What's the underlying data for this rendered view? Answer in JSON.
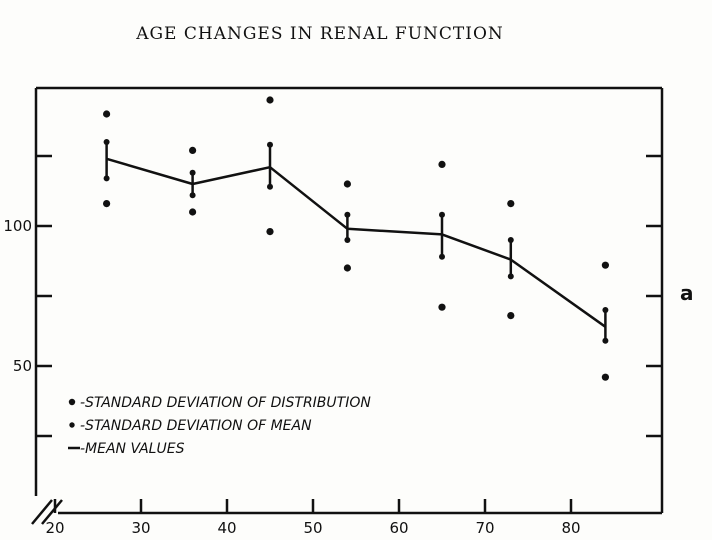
{
  "title": "AGE CHANGES IN RENAL FUNCTION",
  "side_label": "a",
  "legend": [
    {
      "marker": "dot-large",
      "text": "-STANDARD DEVIATION OF DISTRIBUTION"
    },
    {
      "marker": "dot-small",
      "text": "-STANDARD DEVIATION OF MEAN"
    },
    {
      "marker": "line",
      "text": "-MEAN VALUES"
    }
  ],
  "chart_data": {
    "type": "line",
    "title": "AGE CHANGES IN RENAL FUNCTION",
    "xlabel": "",
    "ylabel": "",
    "xlim": [
      15,
      88
    ],
    "ylim": [
      0,
      145
    ],
    "x_break": true,
    "x_ticks": [
      20,
      30,
      40,
      50,
      60,
      70,
      80
    ],
    "y_ticks": [
      50,
      100
    ],
    "grid": false,
    "legend_position": "bottom-left",
    "series": [
      {
        "name": "MEAN VALUES",
        "x": [
          26,
          36,
          45,
          54,
          65,
          73,
          84
        ],
        "y": [
          124,
          115,
          121,
          99,
          97,
          88,
          64
        ]
      },
      {
        "name": "STANDARD DEVIATION OF MEAN (upper)",
        "x": [
          26,
          36,
          45,
          54,
          65,
          73,
          84
        ],
        "y": [
          130,
          119,
          129,
          104,
          104,
          95,
          70
        ]
      },
      {
        "name": "STANDARD DEVIATION OF MEAN (lower)",
        "x": [
          26,
          36,
          45,
          54,
          65,
          73,
          84
        ],
        "y": [
          117,
          111,
          114,
          95,
          89,
          82,
          59
        ]
      },
      {
        "name": "STANDARD DEVIATION OF DISTRIBUTION (upper)",
        "x": [
          26,
          36,
          45,
          54,
          65,
          73,
          84
        ],
        "y": [
          140,
          127,
          145,
          115,
          122,
          108,
          86
        ]
      },
      {
        "name": "STANDARD DEVIATION OF DISTRIBUTION (lower)",
        "x": [
          26,
          36,
          45,
          54,
          65,
          73,
          84
        ],
        "y": [
          108,
          105,
          98,
          85,
          71,
          68,
          46
        ]
      }
    ]
  },
  "colors": {
    "ink": "#111111",
    "paper": "#fdfdfb"
  }
}
